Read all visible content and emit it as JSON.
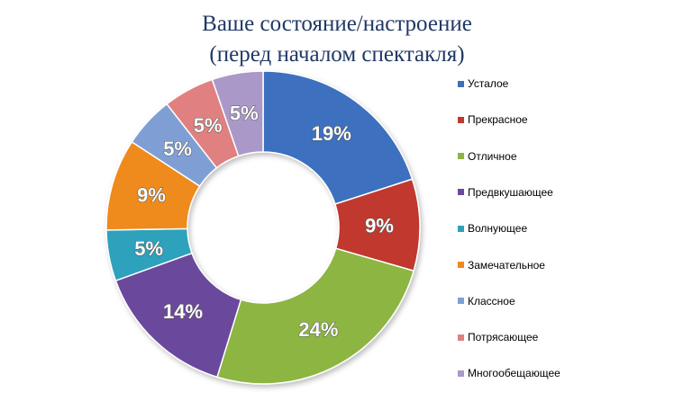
{
  "title": {
    "line1": "Ваше состояние/настроение",
    "line2": "(перед началом спектакля)"
  },
  "chart_data": {
    "type": "pie",
    "style": "doughnut",
    "legend_position": "right",
    "start_angle_deg": 0,
    "direction": "clockwise",
    "slices": [
      {
        "label": "Усталое",
        "value": 19,
        "display": "19%",
        "color": "#3c6fbe"
      },
      {
        "label": "Прекрасное",
        "value": 9,
        "display": "9%",
        "color": "#c0392f"
      },
      {
        "label": "Отличное",
        "value": 24,
        "display": "24%",
        "color": "#8cb543"
      },
      {
        "label": "Предвкушающее",
        "value": 14,
        "display": "14%",
        "color": "#6a4a9c"
      },
      {
        "label": "Волнующее",
        "value": 5,
        "display": "5%",
        "color": "#2fa1bc"
      },
      {
        "label": "Замечательное",
        "value": 9,
        "display": "9%",
        "color": "#ef8a1f"
      },
      {
        "label": "Классное",
        "value": 5,
        "display": "5%",
        "color": "#7f9fd4"
      },
      {
        "label": "Потрясающее",
        "value": 5,
        "display": "5%",
        "color": "#e08080"
      },
      {
        "label": "Многообещающее",
        "value": 5,
        "display": "5%",
        "color": "#aa98c8"
      }
    ]
  }
}
